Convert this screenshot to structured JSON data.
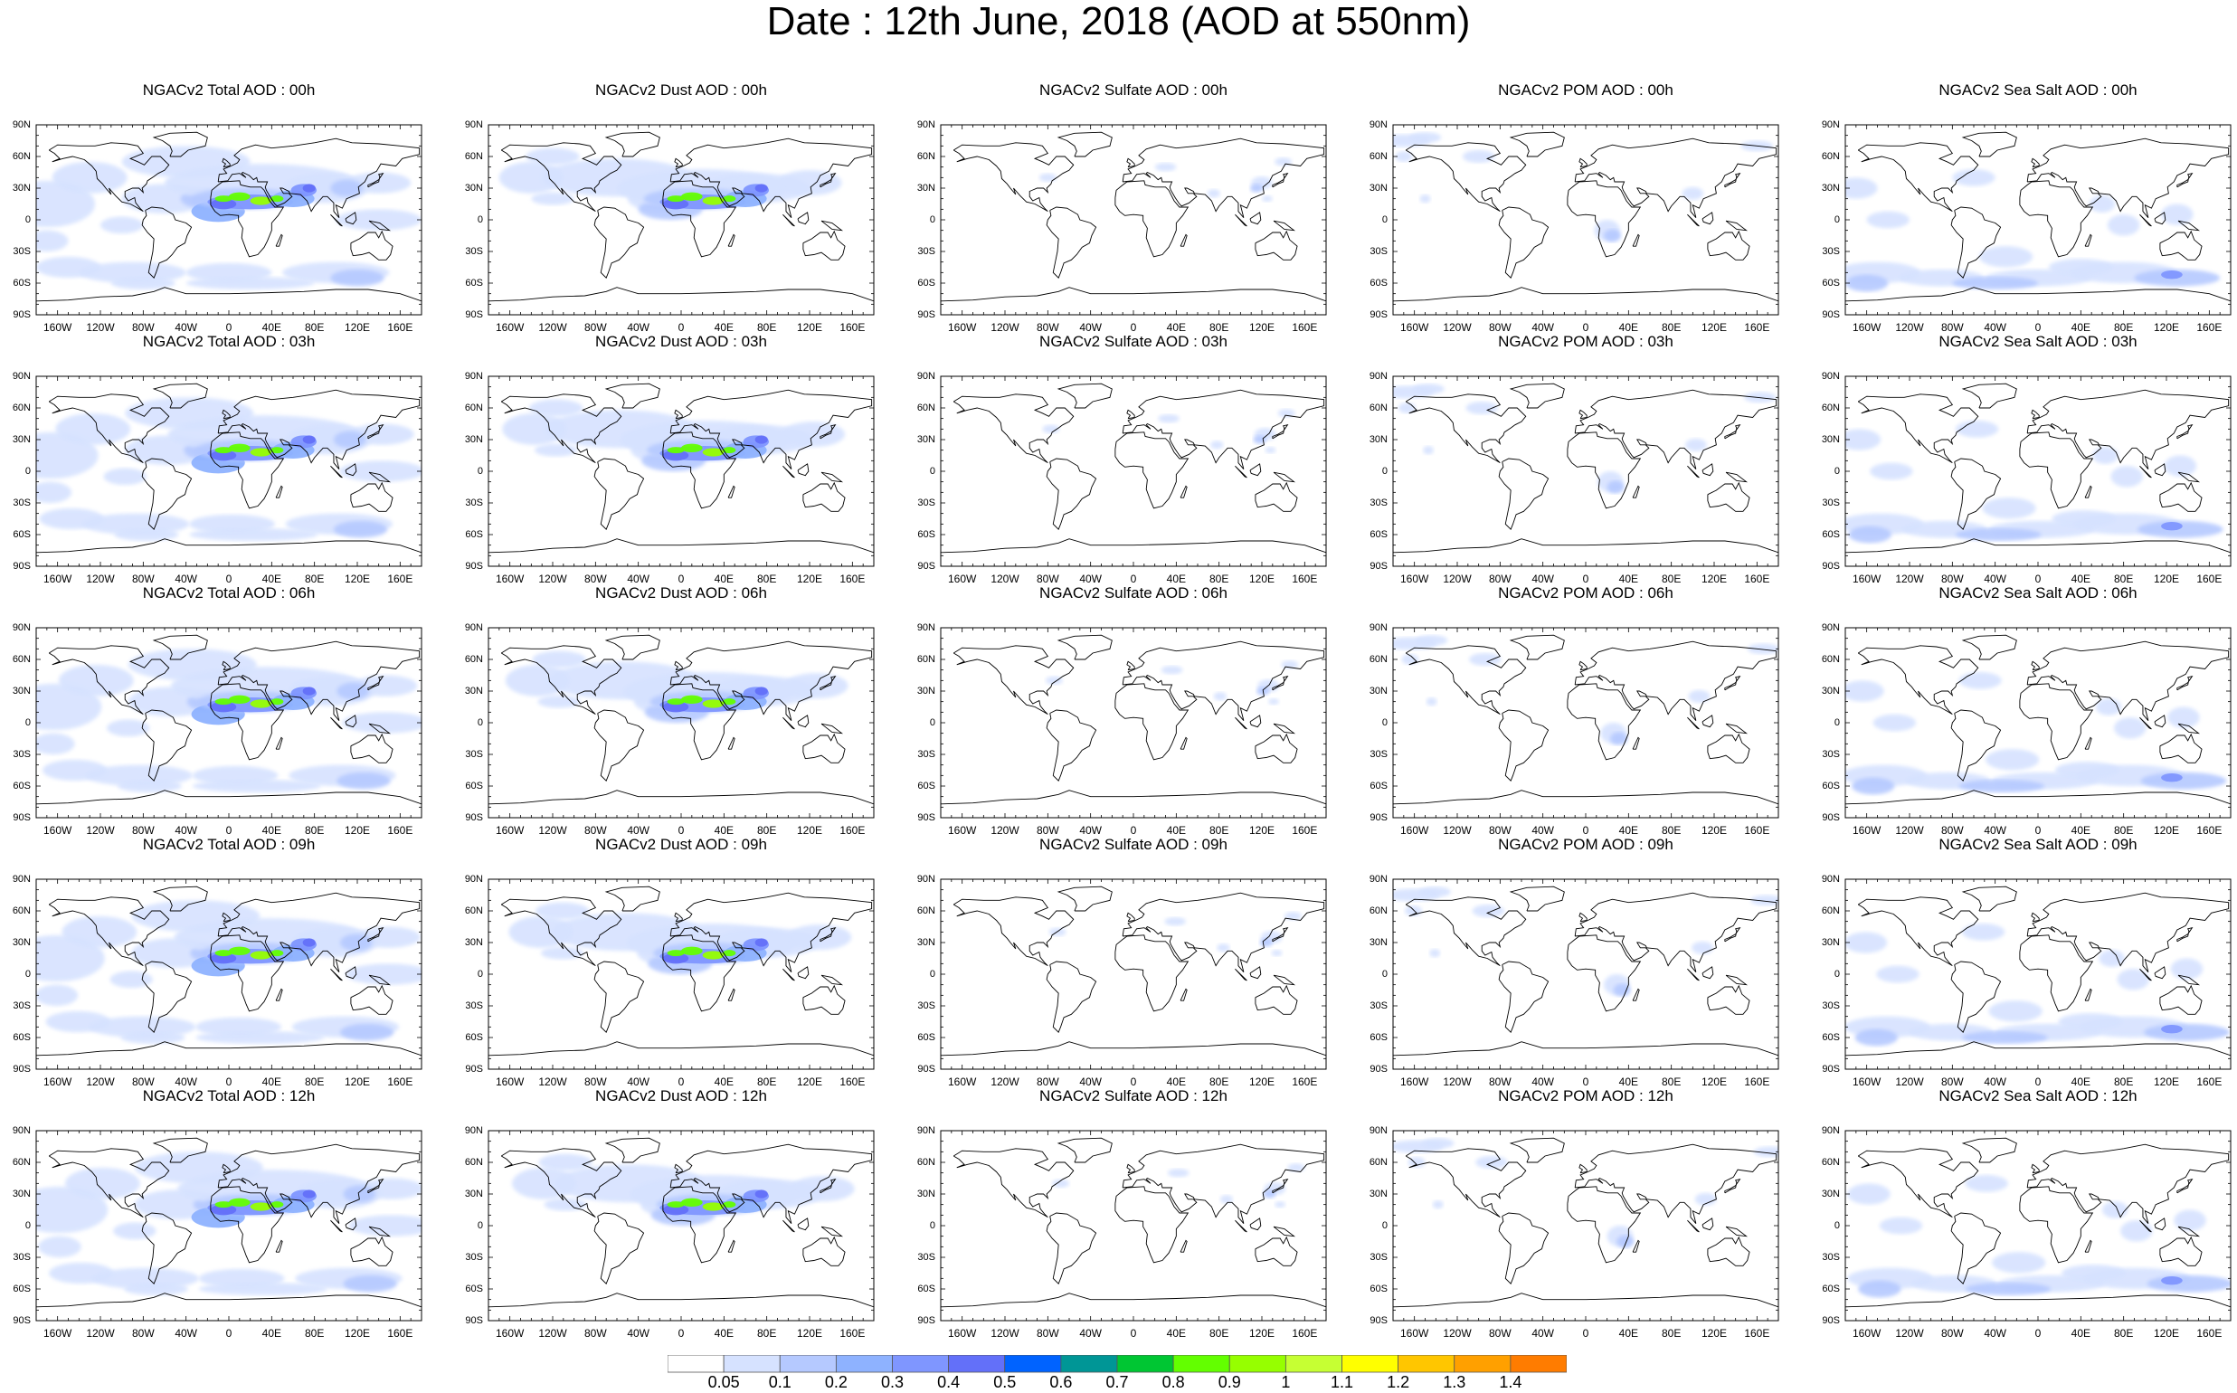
{
  "title": "Date : 12th June, 2018 (AOD at 550nm)",
  "species": [
    "total",
    "dust",
    "sulfate",
    "pom",
    "seasalt"
  ],
  "panels": [
    [
      "NGACv2 Total AOD : 00h",
      "NGACv2 Dust AOD : 00h",
      "NGACv2 Sulfate AOD : 00h",
      "NGACv2 POM AOD : 00h",
      "NGACv2 Sea Salt AOD : 00h"
    ],
    [
      "NGACv2 Total AOD : 03h",
      "NGACv2 Dust AOD : 03h",
      "NGACv2 Sulfate AOD : 03h",
      "NGACv2 POM AOD : 03h",
      "NGACv2 Sea Salt AOD : 03h"
    ],
    [
      "NGACv2 Total AOD : 06h",
      "NGACv2 Dust AOD : 06h",
      "NGACv2 Sulfate AOD : 06h",
      "NGACv2 POM AOD : 06h",
      "NGACv2 Sea Salt AOD : 06h"
    ],
    [
      "NGACv2 Total AOD : 09h",
      "NGACv2 Dust AOD : 09h",
      "NGACv2 Sulfate AOD : 09h",
      "NGACv2 POM AOD : 09h",
      "NGACv2 Sea Salt  AOD : 09h"
    ],
    [
      "NGACv2 Total AOD  : 12h",
      "NGACv2 Dust AOD : 12h",
      "NGACv2 Sulfate AOD : 12h",
      "NGACv2 POM  AOD : 12h",
      "NGACv2 Sea Salt  AOD : 12h"
    ]
  ],
  "lat_labels": [
    "90N",
    "60N",
    "30N",
    "0",
    "30S",
    "60S",
    "90S"
  ],
  "lon_labels": [
    "160W",
    "120W",
    "80W",
    "40W",
    "0",
    "40E",
    "80E",
    "120E",
    "160E"
  ],
  "lat_ticks": [
    90,
    60,
    30,
    0,
    -30,
    -60,
    -90
  ],
  "lon_ticks": [
    -160,
    -120,
    -80,
    -40,
    0,
    40,
    80,
    120,
    160
  ],
  "colorbar": {
    "levels": [
      "0.05",
      "0.1",
      "0.2",
      "0.3",
      "0.4",
      "0.5",
      "0.6",
      "0.7",
      "0.8",
      "0.9",
      "1",
      "1.1",
      "1.2",
      "1.3",
      "1.4"
    ],
    "colors": [
      "#ffffff",
      "#d6e2ff",
      "#b5c9ff",
      "#8eb2ff",
      "#7f96ff",
      "#6370f9",
      "#0063ff",
      "#009696",
      "#00c633",
      "#63ff00",
      "#96ff00",
      "#c6ff33",
      "#ffff00",
      "#ffc600",
      "#ffa000",
      "#ff7c00",
      "#ff1900"
    ]
  }
}
